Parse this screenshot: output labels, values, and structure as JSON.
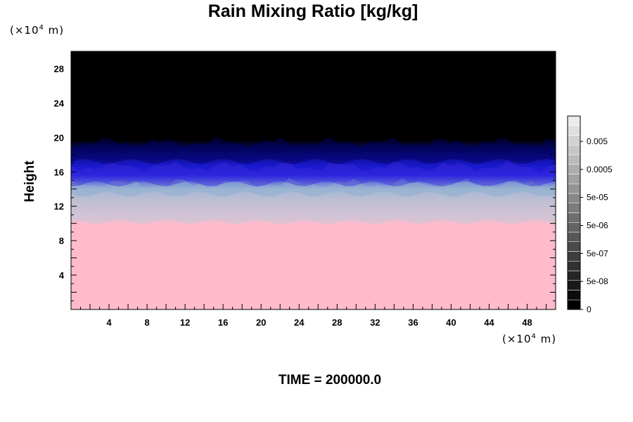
{
  "chart_data": {
    "type": "heatmap",
    "title": "Rain Mixing Ratio [kg/kg]",
    "ylabel": "Height",
    "xlabel": "",
    "x_unit": "(×10⁴ m)",
    "y_unit": "(×10⁴ m)",
    "xlim": [
      0,
      51
    ],
    "ylim": [
      0,
      30
    ],
    "x_ticks": [
      "4",
      "8",
      "12",
      "16",
      "20",
      "24",
      "28",
      "32",
      "36",
      "40",
      "44",
      "48"
    ],
    "y_ticks": [
      "4",
      "8",
      "12",
      "16",
      "20",
      "24",
      "28"
    ],
    "layers": [
      {
        "band": "pink",
        "y_range": [
          0,
          10.2
        ],
        "color": "#ffbbcc"
      },
      {
        "band": "light gray-lavender",
        "y_range": [
          10.2,
          13
        ],
        "color": "#c8c2d6"
      },
      {
        "band": "light blue",
        "y_range": [
          12.5,
          14.5
        ],
        "color": "#9fb6d6"
      },
      {
        "band": "blue",
        "y_range": [
          14.5,
          17.5
        ],
        "color": "#2222ee"
      },
      {
        "band": "dark blue",
        "y_range": [
          17.5,
          19.5
        ],
        "color": "#0a0a80"
      },
      {
        "band": "black",
        "y_range": [
          19.5,
          30
        ],
        "color": "#000000"
      }
    ],
    "colorbar": {
      "labels": [
        "0",
        "5e-08",
        "5e-07",
        "5e-06",
        "5e-05",
        "0.0005",
        "0.005"
      ]
    },
    "footer": "TIME = 200000.0"
  }
}
